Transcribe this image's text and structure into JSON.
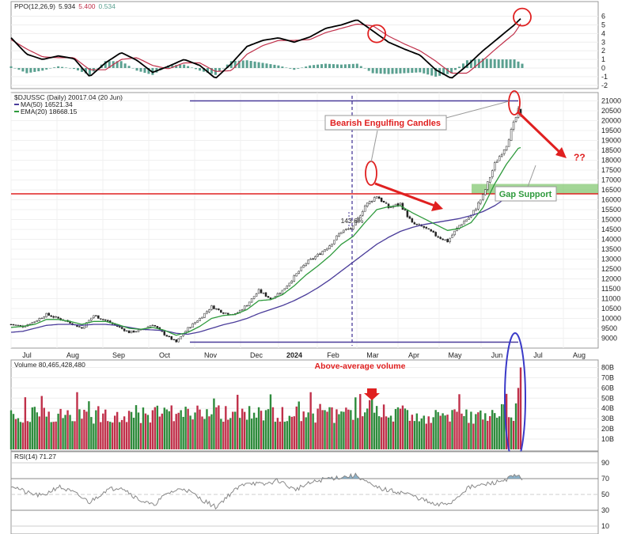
{
  "colors": {
    "up": "#2e8b3c",
    "down": "#c0304a",
    "ma50": "#4a3c9a",
    "ema20": "#2e9a3c",
    "ppo_line": "#000000",
    "ppo_signal": "#c0304a",
    "ppo_hist": "#5aa090",
    "annotation": "#e02020",
    "gap_zone": "#7cc46a",
    "rsi_fill": "#6a9ab8"
  },
  "chart_data": [
    {
      "panel": "ppo",
      "type": "line",
      "legend": {
        "name": "PPO(12,26,9)",
        "ppo": "5.934",
        "signal": "5.400",
        "hist": "0.534"
      },
      "ylim": [
        -2.2,
        6.6
      ],
      "y_ticks": [
        "-2",
        "-1",
        "0",
        "1",
        "2",
        "3",
        "4",
        "5",
        "6"
      ],
      "x": [
        0,
        20,
        40,
        60,
        80,
        100,
        120,
        140,
        160,
        180,
        200,
        220,
        240,
        260,
        280,
        300,
        320,
        340,
        360,
        380,
        400,
        420,
        440,
        460,
        480,
        500,
        520,
        540,
        560,
        580,
        600,
        620,
        640,
        650
      ],
      "series": [
        {
          "key": "ppo",
          "values": [
            3.5,
            1.6,
            1.0,
            1.4,
            1.1,
            -1.0,
            0.6,
            1.8,
            0.9,
            -0.5,
            0.2,
            1.0,
            0.3,
            -1.2,
            0.5,
            2.5,
            3.2,
            3.5,
            3.0,
            3.6,
            4.6,
            5.0,
            5.6,
            4.3,
            3.0,
            2.2,
            1.5,
            -0.2,
            -1.2,
            0.3,
            2.0,
            3.5,
            5.0,
            5.9
          ]
        },
        {
          "key": "signal",
          "values": [
            3.3,
            2.2,
            1.3,
            1.2,
            1.2,
            -0.2,
            -0.2,
            1.0,
            1.2,
            0.3,
            -0.1,
            0.6,
            0.6,
            -0.4,
            -0.3,
            1.6,
            2.6,
            3.2,
            3.2,
            3.3,
            4.1,
            4.6,
            5.1,
            4.9,
            3.7,
            2.8,
            2.0,
            0.8,
            -0.6,
            -0.6,
            0.9,
            2.5,
            4.0,
            5.4
          ]
        },
        {
          "key": "hist",
          "values": [
            0.2,
            -0.6,
            -0.3,
            0.2,
            -0.1,
            -0.8,
            0.8,
            0.8,
            -0.3,
            -0.8,
            0.3,
            0.4,
            -0.3,
            -0.8,
            0.8,
            0.9,
            0.6,
            0.3,
            -0.2,
            0.3,
            0.5,
            0.4,
            0.5,
            -0.6,
            -0.7,
            -0.6,
            -0.5,
            -1.0,
            -0.6,
            0.9,
            1.1,
            1.0,
            1.0,
            0.5
          ]
        }
      ],
      "annotation_circles": [
        465,
        650
      ]
    },
    {
      "panel": "price",
      "type": "candlestick",
      "legend": {
        "name": "$DJUSSC (Daily) 20017.04 (20 Jun)",
        "ma": "MA(50) 16521.34",
        "ema": "EMA(20) 18668.15"
      },
      "ylim": [
        8500,
        21300
      ],
      "y_ticks": [
        "9000",
        "9500",
        "10000",
        "10500",
        "11000",
        "11500",
        "12000",
        "12500",
        "13000",
        "13500",
        "14000",
        "14500",
        "15000",
        "15500",
        "16000",
        "16500",
        "17000",
        "17500",
        "18000",
        "18500",
        "19000",
        "19500",
        "20000",
        "20500",
        "21000"
      ],
      "x_ticks": [
        "Jul",
        "Aug",
        "Sep",
        "Oct",
        "Nov",
        "Dec",
        "2024",
        "Feb",
        "Mar",
        "Apr",
        "May",
        "Jun",
        "Jul",
        "Aug"
      ],
      "close_x": [
        0,
        15,
        30,
        45,
        60,
        75,
        90,
        105,
        120,
        135,
        150,
        165,
        180,
        195,
        210,
        225,
        240,
        255,
        270,
        285,
        300,
        315,
        330,
        345,
        360,
        375,
        390,
        405,
        420,
        435,
        450,
        465,
        480,
        495,
        510,
        525,
        540,
        555,
        570,
        585,
        600,
        615,
        630,
        645,
        650
      ],
      "close": [
        9700,
        9600,
        9850,
        10200,
        10000,
        9800,
        9500,
        10150,
        9900,
        9600,
        9300,
        9400,
        9700,
        9200,
        8800,
        9500,
        10000,
        10600,
        10300,
        10200,
        10700,
        11400,
        11000,
        11400,
        12100,
        12800,
        13200,
        13700,
        14400,
        14600,
        15700,
        16200,
        15600,
        15800,
        14800,
        14600,
        14200,
        13900,
        14700,
        15200,
        16200,
        17800,
        18800,
        20500,
        20017
      ],
      "ma50": [
        9300,
        9350,
        9500,
        9650,
        9700,
        9700,
        9650,
        9700,
        9700,
        9650,
        9550,
        9450,
        9420,
        9380,
        9250,
        9200,
        9320,
        9500,
        9680,
        9820,
        10000,
        10250,
        10450,
        10650,
        10900,
        11200,
        11550,
        11950,
        12400,
        12850,
        13300,
        13750,
        14100,
        14400,
        14600,
        14750,
        14850,
        14950,
        15050,
        15200,
        15400,
        15700,
        16100,
        16450,
        16521
      ],
      "ema20": [
        9550,
        9600,
        9700,
        9950,
        9950,
        9850,
        9700,
        9850,
        9850,
        9700,
        9500,
        9450,
        9550,
        9400,
        9150,
        9300,
        9600,
        10000,
        10150,
        10200,
        10450,
        10900,
        10950,
        11200,
        11650,
        12200,
        12650,
        13150,
        13750,
        14150,
        14850,
        15500,
        15650,
        15700,
        15350,
        15050,
        14750,
        14450,
        14550,
        14850,
        15600,
        16800,
        17800,
        18600,
        18668
      ],
      "reference_lines": {
        "resistance": 16300,
        "top": 21000,
        "bottom": 8800,
        "gap_zone": [
          16300,
          16800
        ]
      },
      "annotations": {
        "callout1": "Bearish Engulfing Candles",
        "callout2": "Gap Support",
        "pct": "143.6%",
        "question": "??"
      }
    },
    {
      "panel": "volume",
      "type": "bar",
      "legend": {
        "name": "Volume 80,465,428,480"
      },
      "annotation": "Above-average volume",
      "ylim": [
        0,
        85
      ],
      "y_ticks": [
        "10B",
        "20B",
        "30B",
        "40B",
        "50B",
        "60B",
        "70B",
        "80B"
      ],
      "unit": "B"
    },
    {
      "panel": "rsi",
      "type": "line",
      "legend": {
        "name": "RSI(14) 71.27"
      },
      "ylim": [
        0,
        100
      ],
      "y_ticks": [
        "10",
        "30",
        "50",
        "70",
        "90"
      ],
      "x": [
        0,
        20,
        40,
        60,
        80,
        100,
        120,
        140,
        160,
        180,
        200,
        220,
        240,
        260,
        280,
        300,
        320,
        340,
        360,
        380,
        400,
        420,
        440,
        460,
        480,
        500,
        520,
        540,
        560,
        580,
        600,
        620,
        640,
        650
      ],
      "values": [
        62,
        52,
        48,
        60,
        52,
        40,
        55,
        60,
        45,
        36,
        52,
        58,
        45,
        34,
        52,
        66,
        62,
        68,
        56,
        64,
        70,
        72,
        74,
        60,
        55,
        52,
        45,
        36,
        40,
        58,
        62,
        66,
        73,
        71
      ]
    }
  ]
}
